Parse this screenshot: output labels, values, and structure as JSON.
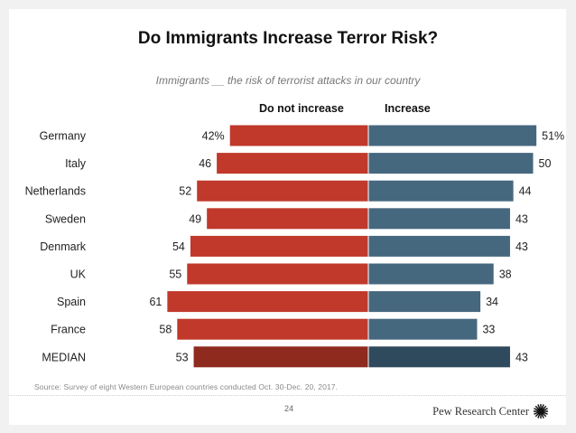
{
  "slide": {
    "source": "Source: Survey of eight Western European countries conducted Oct. 30-Dec. 20, 2017.",
    "page_number": "24",
    "brand": "Pew Research Center",
    "brand_logo_icon": "pew-sunburst-logo"
  },
  "colors": {
    "not_increase": "#C0392B",
    "increase": "#46687F",
    "median_not_increase": "#8E2A1E",
    "median_increase": "#2F4A5C"
  },
  "chart_data": {
    "type": "bar",
    "orientation": "horizontal-diverging",
    "title": "Do Immigrants Increase Terror Risk?",
    "subtitle": "Immigrants __ the risk of terrorist attacks in our country",
    "unit": "%",
    "categories": [
      "Germany",
      "Italy",
      "Netherlands",
      "Sweden",
      "Denmark",
      "UK",
      "Spain",
      "France",
      "MEDIAN"
    ],
    "series": [
      {
        "name": "Do not increase",
        "side": "left",
        "values": [
          42,
          46,
          52,
          49,
          54,
          55,
          61,
          58,
          53
        ],
        "labels": [
          "42%",
          "46",
          "52",
          "49",
          "54",
          "55",
          "61",
          "58",
          "53"
        ]
      },
      {
        "name": "Increase",
        "side": "right",
        "values": [
          51,
          50,
          44,
          43,
          43,
          38,
          34,
          33,
          43
        ],
        "labels": [
          "51%",
          "50",
          "44",
          "43",
          "43",
          "38",
          "34",
          "33",
          "43"
        ]
      }
    ],
    "xlabel": "",
    "ylabel": "",
    "xlim": [
      0,
      61
    ],
    "grid": false,
    "legend": "column headers above bars"
  }
}
